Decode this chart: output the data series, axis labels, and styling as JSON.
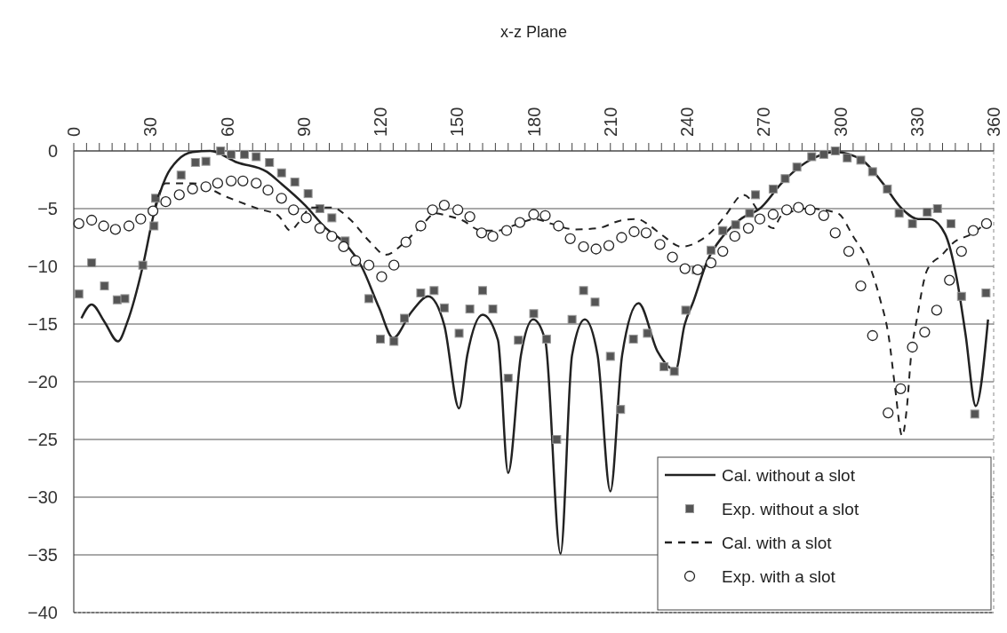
{
  "chart_data": {
    "type": "line",
    "title": "x-z Plane",
    "xlim": [
      0,
      360
    ],
    "xticks": [
      0,
      {
        "value": 5,
        "label": null
      },
      {
        "value": 10,
        "label": null
      },
      {
        "value": 15,
        "label": null
      },
      {
        "value": 20,
        "label": null
      },
      {
        "value": 25,
        "label": null
      },
      30,
      {
        "value": 35,
        "label": null
      },
      {
        "value": 40,
        "label": null
      },
      {
        "value": 45,
        "label": null
      },
      {
        "value": 50,
        "label": null
      },
      {
        "value": 55,
        "label": null
      },
      60,
      {
        "value": 65,
        "label": null
      },
      {
        "value": 70,
        "label": null
      },
      {
        "value": 75,
        "label": null
      },
      {
        "value": 80,
        "label": null
      },
      {
        "value": 85,
        "label": null
      },
      90,
      {
        "value": 95,
        "label": null
      },
      {
        "value": 100,
        "label": null
      },
      {
        "value": 105,
        "label": null
      },
      {
        "value": 110,
        "label": null
      },
      {
        "value": 115,
        "label": null
      },
      120,
      {
        "value": 125,
        "label": null
      },
      {
        "value": 130,
        "label": null
      },
      {
        "value": 135,
        "label": null
      },
      {
        "value": 140,
        "label": null
      },
      {
        "value": 145,
        "label": null
      },
      150,
      {
        "value": 155,
        "label": null
      },
      {
        "value": 160,
        "label": null
      },
      {
        "value": 165,
        "label": null
      },
      {
        "value": 170,
        "label": null
      },
      {
        "value": 175,
        "label": null
      },
      180,
      {
        "value": 185,
        "label": null
      },
      {
        "value": 190,
        "label": null
      },
      {
        "value": 195,
        "label": null
      },
      {
        "value": 200,
        "label": null
      },
      {
        "value": 205,
        "label": null
      },
      210,
      {
        "value": 215,
        "label": null
      },
      {
        "value": 220,
        "label": null
      },
      {
        "value": 225,
        "label": null
      },
      {
        "value": 230,
        "label": null
      },
      {
        "value": 235,
        "label": null
      },
      240,
      {
        "value": 245,
        "label": null
      },
      {
        "value": 250,
        "label": null
      },
      {
        "value": 255,
        "label": null
      },
      {
        "value": 260,
        "label": null
      },
      {
        "value": 265,
        "label": null
      },
      270,
      {
        "value": 275,
        "label": null
      },
      {
        "value": 280,
        "label": null
      },
      {
        "value": 285,
        "label": null
      },
      {
        "value": 290,
        "label": null
      },
      {
        "value": 295,
        "label": null
      },
      300,
      {
        "value": 305,
        "label": null
      },
      {
        "value": 310,
        "label": null
      },
      {
        "value": 315,
        "label": null
      },
      {
        "value": 320,
        "label": null
      },
      {
        "value": 325,
        "label": null
      },
      330,
      {
        "value": 335,
        "label": null
      },
      {
        "value": 340,
        "label": null
      },
      {
        "value": 345,
        "label": null
      },
      {
        "value": 350,
        "label": null
      },
      {
        "value": 355,
        "label": null
      },
      360
    ],
    "ylim": [
      -40,
      0
    ],
    "yticks": [
      0,
      -5,
      -10,
      -15,
      -20,
      -25,
      -30,
      -35,
      -40
    ],
    "grid": "y",
    "legend": "bottom right",
    "series": [
      {
        "name": "Cal. without a slot",
        "type": "line",
        "line_style": "solid",
        "color": "#222222",
        "x": [
          3,
          7,
          12,
          17.3,
          21,
          27,
          31.4,
          36,
          40.7,
          46.5,
          53.4,
          64,
          75.5,
          81,
          90.5,
          98.7,
          105.6,
          112.6,
          119.5,
          125,
          132,
          138.7,
          145,
          150.8,
          154,
          160,
          166,
          170,
          175,
          179.8,
          184.5,
          190.5,
          195,
          200,
          205,
          210,
          214.6,
          221,
          228.5,
          235.5,
          239,
          242.4,
          248,
          254,
          261,
          269,
          277,
          286.5,
          298,
          308.5,
          316.6,
          323.6,
          330.5,
          335,
          341,
          345.5,
          349,
          353,
          357.8
        ],
        "values": [
          -14.5,
          -13.3,
          -14.8,
          -16.5,
          -14.8,
          -10,
          -5.4,
          -2.3,
          -0.8,
          -0.1,
          0,
          -1,
          -1.8,
          -2.8,
          -4.7,
          -6.7,
          -7.9,
          -10,
          -13.6,
          -16.2,
          -14,
          -12.6,
          -15.1,
          -22.3,
          -17.7,
          -14.2,
          -16.4,
          -27.9,
          -17.7,
          -14.6,
          -16.4,
          -34.9,
          -17.7,
          -14.6,
          -17.7,
          -29.5,
          -17.7,
          -13.2,
          -17.4,
          -19,
          -15.1,
          -13.1,
          -9.5,
          -7.4,
          -5.9,
          -4.9,
          -2.8,
          -1,
          -0.1,
          -0.8,
          -2.8,
          -4.9,
          -5.9,
          -5.9,
          -7.2,
          -11,
          -15.9,
          -22.1,
          -14.6
        ]
      },
      {
        "name": "Exp. without a slot",
        "type": "scatter",
        "marker": "square",
        "color": "#555555",
        "x": [
          2,
          7,
          12,
          17,
          20,
          27,
          31.4,
          32,
          42,
          47.6,
          51.7,
          57.5,
          61.6,
          66.8,
          71.4,
          76.6,
          81.3,
          86.5,
          91.7,
          96.3,
          101,
          106.2,
          110.3,
          115.5,
          120,
          125.3,
          129.4,
          135.8,
          141,
          145,
          150.8,
          155,
          160,
          164,
          170,
          174,
          180,
          185,
          189,
          195,
          199.5,
          204,
          210,
          214,
          219,
          224.5,
          231,
          235,
          239.5,
          243.6,
          249.4,
          254,
          259,
          264.5,
          266.8,
          273.7,
          278.4,
          283,
          288.8,
          293.5,
          298,
          302.7,
          308,
          312.6,
          318.4,
          323,
          328.2,
          334,
          338,
          343.3,
          347.4,
          352.6,
          357
        ],
        "values": [
          -12.4,
          -9.7,
          -11.7,
          -12.9,
          -12.8,
          -9.9,
          -6.5,
          -4.1,
          -2.1,
          -1,
          -0.9,
          0,
          -0.3,
          -0.3,
          -0.5,
          -1,
          -1.9,
          -2.7,
          -3.7,
          -5,
          -5.8,
          -7.8,
          -9.6,
          -12.8,
          -16.3,
          -16.5,
          -14.5,
          -12.3,
          -12.1,
          -13.6,
          -15.8,
          -13.7,
          -12.1,
          -13.7,
          -19.7,
          -16.4,
          -14.1,
          -16.3,
          -25,
          -14.6,
          -12.1,
          -13.1,
          -17.8,
          -22.4,
          -16.3,
          -15.8,
          -18.7,
          -19.1,
          -13.8,
          -10.3,
          -8.6,
          -6.9,
          -6.4,
          -5.4,
          -3.8,
          -3.3,
          -2.4,
          -1.4,
          -0.5,
          -0.3,
          0,
          -0.6,
          -0.8,
          -1.8,
          -3.3,
          -5.4,
          -6.3,
          -5.3,
          -5,
          -6.3,
          -12.6,
          -22.8,
          -12.3
        ]
      },
      {
        "name": "Cal. with a slot",
        "type": "line",
        "line_style": "dashed",
        "color": "#222222",
        "x": [
          31.4,
          36,
          46.5,
          60,
          72,
          80,
          84.7,
          88,
          93,
          101,
          108,
          116,
          122,
          130,
          136,
          141.6,
          146,
          152,
          159.5,
          166,
          174,
          180.4,
          186.8,
          196,
          205,
          214.6,
          220.4,
          225,
          230.3,
          237.8,
          244.8,
          250.5,
          255,
          262,
          273.7,
          277,
          288,
          299,
          305,
          311,
          315.5,
          319,
          321.3,
          324.2,
          326,
          327.7,
          330,
          334,
          339.8,
          344.5,
          351.4,
          356.6
        ],
        "values": [
          -5.1,
          -2.8,
          -2.8,
          -4,
          -5,
          -5.6,
          -6.9,
          -6.2,
          -4.9,
          -4.9,
          -5.9,
          -7.9,
          -9,
          -7.8,
          -6.5,
          -5.4,
          -5.6,
          -6,
          -6.9,
          -6.9,
          -6.3,
          -5.9,
          -6.3,
          -6.8,
          -6.7,
          -6,
          -5.9,
          -6.4,
          -7.3,
          -8.3,
          -7.8,
          -6.8,
          -5.6,
          -3.8,
          -6.7,
          -5.6,
          -5,
          -5.4,
          -7.4,
          -9.7,
          -12.8,
          -16.2,
          -20.3,
          -24.7,
          -22.3,
          -17.7,
          -14.5,
          -10.3,
          -9,
          -7.9,
          -7.2,
          -6.3
        ]
      },
      {
        "name": "Exp. with a slot",
        "type": "scatter",
        "marker": "circle",
        "color": "#222222",
        "x": [
          2,
          7,
          11.7,
          16.3,
          21.6,
          26.2,
          31,
          36,
          41.3,
          46.5,
          51.7,
          56.3,
          61.6,
          66.2,
          71.4,
          76,
          81.3,
          86,
          91,
          96.3,
          101,
          105.6,
          110.3,
          115.5,
          120.5,
          125.3,
          130,
          135.8,
          140.4,
          145,
          150.3,
          155,
          159.6,
          164,
          169.4,
          174.6,
          180,
          184.5,
          189.7,
          194.3,
          199.5,
          204.4,
          209.4,
          214.4,
          219.3,
          224,
          229.4,
          234.3,
          239.2,
          244.2,
          249.4,
          254,
          258.7,
          264,
          268.5,
          273.7,
          279,
          283.6,
          288.2,
          293.5,
          298,
          303.3,
          308,
          312.6,
          318.7,
          323.6,
          328.2,
          333,
          337.7,
          342.7,
          347.4,
          352,
          357.2
        ],
        "values": [
          -6.3,
          -6,
          -6.5,
          -6.8,
          -6.5,
          -5.9,
          -5.2,
          -4.4,
          -3.8,
          -3.3,
          -3.1,
          -2.8,
          -2.6,
          -2.6,
          -2.8,
          -3.4,
          -4.1,
          -5.1,
          -5.8,
          -6.7,
          -7.4,
          -8.3,
          -9.5,
          -9.9,
          -10.9,
          -9.9,
          -7.9,
          -6.5,
          -5.1,
          -4.7,
          -5.1,
          -5.7,
          -7.1,
          -7.4,
          -6.9,
          -6.2,
          -5.5,
          -5.6,
          -6.5,
          -7.6,
          -8.3,
          -8.5,
          -8.2,
          -7.5,
          -7,
          -7.1,
          -8.1,
          -9.2,
          -10.2,
          -10.3,
          -9.7,
          -8.7,
          -7.4,
          -6.7,
          -5.9,
          -5.5,
          -5.1,
          -4.9,
          -5.1,
          -5.6,
          -7.1,
          -8.7,
          -11.7,
          -16,
          -22.7,
          -20.6,
          -17,
          -15.7,
          -13.8,
          -11.2,
          -8.7,
          -6.9,
          -6.3
        ]
      }
    ]
  }
}
